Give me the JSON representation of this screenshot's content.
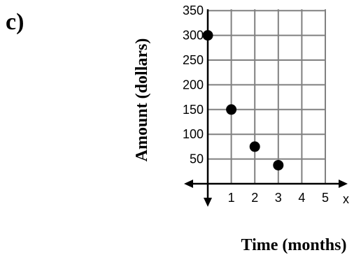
{
  "panel_label": "c)",
  "chart_data": {
    "type": "scatter",
    "xlabel": "Time (months)",
    "ylabel": "Amount (dollars)",
    "x_axis_letter": "x",
    "x_ticks": [
      "1",
      "2",
      "3",
      "4",
      "5"
    ],
    "y_ticks": [
      "50",
      "100",
      "150",
      "200",
      "250",
      "300",
      "350"
    ],
    "xlim": [
      0,
      5
    ],
    "ylim": [
      0,
      350
    ],
    "grid": true,
    "series": [
      {
        "points": [
          {
            "x": 0,
            "y": 300
          },
          {
            "x": 1,
            "y": 150
          },
          {
            "x": 2,
            "y": 75
          },
          {
            "x": 3,
            "y": 37.5
          }
        ]
      }
    ],
    "colors": {
      "grid": "#808080",
      "axis": "#000000",
      "points": "#000000"
    }
  }
}
